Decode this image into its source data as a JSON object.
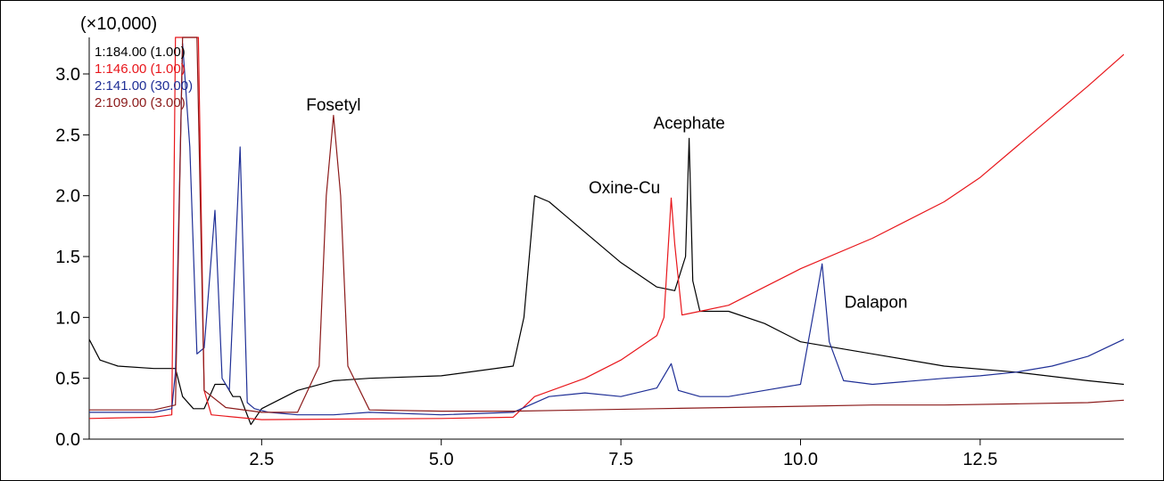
{
  "chart_data": {
    "type": "line",
    "title": "",
    "xlabel": "",
    "ylabel": "",
    "multiplier_label": "(×10,000)",
    "xlim": [
      0.1,
      14.5
    ],
    "ylim": [
      0,
      3.3
    ],
    "grid": false,
    "legend_position": "top-left",
    "x_ticks": [
      2.5,
      5.0,
      7.5,
      10.0,
      12.5
    ],
    "x_tick_labels": [
      "2.5",
      "5.0",
      "7.5",
      "10.0",
      "12.5"
    ],
    "y_ticks": [
      0.0,
      0.5,
      1.0,
      1.5,
      2.0,
      2.5,
      3.0
    ],
    "y_tick_labels": [
      "0.0",
      "0.5",
      "1.0",
      "1.5",
      "2.0",
      "2.5",
      "3.0"
    ],
    "series": [
      {
        "name": "1:184.00 (1.00)",
        "color": "#000000",
        "x": [
          0.1,
          0.25,
          0.5,
          1.0,
          1.3,
          1.4,
          1.55,
          1.7,
          1.85,
          2.0,
          2.1,
          2.2,
          2.35,
          2.5,
          3.0,
          3.5,
          4.0,
          5.0,
          6.0,
          6.15,
          6.3,
          6.5,
          7.0,
          7.5,
          8.0,
          8.25,
          8.4,
          8.45,
          8.5,
          8.6,
          9.0,
          9.5,
          10.0,
          11.0,
          12.0,
          13.0,
          14.0,
          14.5
        ],
        "y": [
          0.82,
          0.65,
          0.6,
          0.58,
          0.58,
          0.35,
          0.25,
          0.25,
          0.45,
          0.45,
          0.35,
          0.35,
          0.12,
          0.25,
          0.4,
          0.48,
          0.5,
          0.52,
          0.6,
          1.0,
          2.0,
          1.95,
          1.7,
          1.45,
          1.25,
          1.22,
          1.5,
          2.47,
          1.3,
          1.05,
          1.05,
          0.95,
          0.8,
          0.7,
          0.6,
          0.55,
          0.48,
          0.45
        ]
      },
      {
        "name": "1:146.00 (1.00)",
        "color": "#e8161b",
        "x": [
          0.1,
          1.0,
          1.25,
          1.3,
          1.35,
          1.55,
          1.62,
          1.7,
          1.8,
          2.5,
          5.0,
          6.0,
          6.3,
          7.0,
          7.5,
          8.0,
          8.1,
          8.2,
          8.25,
          8.35,
          8.6,
          9.0,
          9.5,
          10.0,
          11.0,
          12.0,
          12.5,
          13.0,
          13.5,
          14.0,
          14.5
        ],
        "y": [
          0.17,
          0.18,
          0.2,
          3.3,
          3.3,
          3.3,
          3.3,
          0.4,
          0.2,
          0.16,
          0.17,
          0.18,
          0.35,
          0.5,
          0.65,
          0.85,
          1.0,
          1.98,
          1.6,
          1.02,
          1.05,
          1.1,
          1.25,
          1.4,
          1.65,
          1.95,
          2.15,
          2.4,
          2.65,
          2.9,
          3.16
        ]
      },
      {
        "name": "2:141.00 (30.00)",
        "color": "#1f2f96",
        "x": [
          0.1,
          1.0,
          1.25,
          1.3,
          1.4,
          1.5,
          1.6,
          1.7,
          1.85,
          1.95,
          2.05,
          2.2,
          2.3,
          2.4,
          2.6,
          3.0,
          3.5,
          4.0,
          5.0,
          6.0,
          6.5,
          7.0,
          7.5,
          8.0,
          8.2,
          8.3,
          8.6,
          9.0,
          9.5,
          10.0,
          10.2,
          10.3,
          10.4,
          10.6,
          11.0,
          12.0,
          12.5,
          13.0,
          13.5,
          14.0,
          14.5
        ],
        "y": [
          0.22,
          0.22,
          0.25,
          0.55,
          3.25,
          2.4,
          0.7,
          0.75,
          1.88,
          0.5,
          0.4,
          2.4,
          0.3,
          0.25,
          0.22,
          0.2,
          0.2,
          0.22,
          0.2,
          0.22,
          0.35,
          0.38,
          0.35,
          0.42,
          0.62,
          0.4,
          0.35,
          0.35,
          0.4,
          0.45,
          1.1,
          1.44,
          0.8,
          0.48,
          0.45,
          0.5,
          0.52,
          0.55,
          0.6,
          0.68,
          0.82
        ]
      },
      {
        "name": "2:109.00 (3.00)",
        "color": "#8b1a1a",
        "x": [
          0.1,
          1.0,
          1.3,
          1.4,
          1.5,
          1.6,
          1.7,
          2.0,
          2.5,
          3.0,
          3.3,
          3.4,
          3.5,
          3.6,
          3.7,
          4.0,
          5.0,
          6.0,
          7.0,
          8.0,
          9.0,
          10.0,
          11.0,
          12.0,
          13.0,
          14.0,
          14.5
        ],
        "y": [
          0.24,
          0.24,
          0.28,
          3.3,
          3.3,
          3.3,
          0.4,
          0.26,
          0.22,
          0.22,
          0.6,
          2.0,
          2.66,
          2.0,
          0.6,
          0.24,
          0.23,
          0.23,
          0.24,
          0.25,
          0.26,
          0.27,
          0.28,
          0.28,
          0.29,
          0.3,
          0.32
        ]
      }
    ],
    "annotations": [
      {
        "text": "Fosetyl",
        "x": 3.5,
        "y": 2.7
      },
      {
        "text": "Acephate",
        "x": 8.45,
        "y": 2.55
      },
      {
        "text": "Oxine-Cu",
        "x": 7.55,
        "y": 2.02
      },
      {
        "text": "Dalapon",
        "x": 11.05,
        "y": 1.08
      }
    ]
  }
}
